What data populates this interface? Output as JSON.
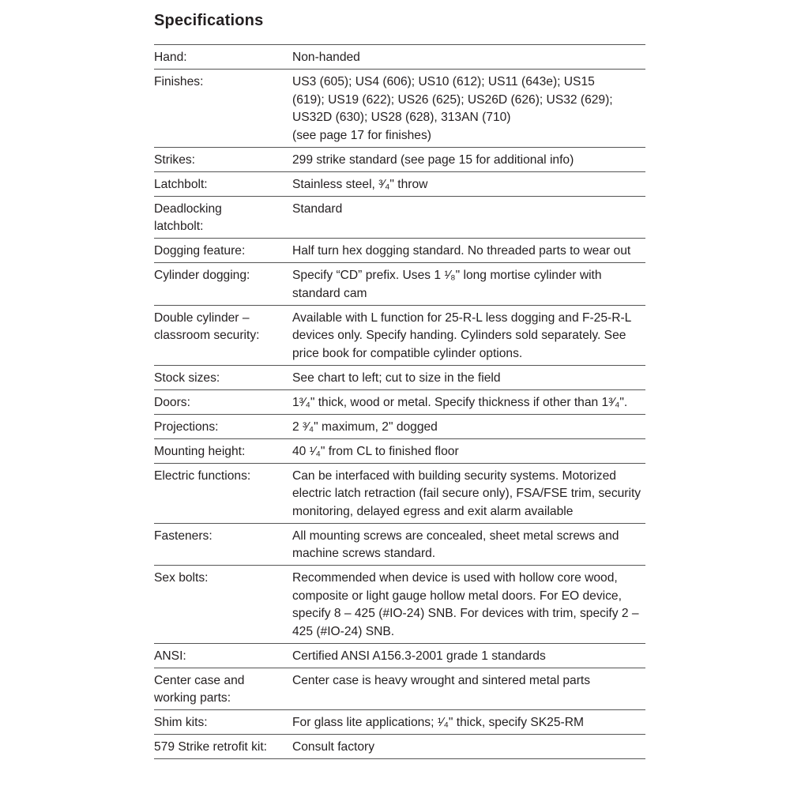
{
  "title": "Specifications",
  "rows": [
    {
      "label": "Hand:",
      "value": "Non-handed"
    },
    {
      "label": "Finishes:",
      "value": "US3 (605); US4 (606); US10 (612); US11 (643e); US15 (619); US19 (622); US26 (625); US26D (626); US32 (629); US32D (630); US28 (628), 313AN (710)\n(see page 17 for finishes)"
    },
    {
      "label": "Strikes:",
      "value": "299 strike standard (see page 15 for additional info)"
    },
    {
      "label": "Latchbolt:",
      "value": "Stainless steel, ³⁄₄\" throw"
    },
    {
      "label": "Deadlocking latchbolt:",
      "value": "Standard"
    },
    {
      "label": "Dogging feature:",
      "value": "Half turn hex dogging standard. No threaded parts to wear out"
    },
    {
      "label": "Cylinder dogging:",
      "value": "Specify “CD” prefix. Uses 1 ¹⁄₈\" long mortise cylinder with standard cam"
    },
    {
      "label": "Double cylinder – classroom security:",
      "value": "Available with L function for 25-R-L less dogging and F-25-R-L devices only. Specify handing. Cylinders sold separately. See price book for compatible cylinder options."
    },
    {
      "label": "Stock sizes:",
      "value": "See chart to left; cut to size in the field"
    },
    {
      "label": "Doors:",
      "value": "1³⁄₄\" thick, wood or metal. Specify thickness if other than 1³⁄₄\"."
    },
    {
      "label": "Projections:",
      "value": "2 ³⁄₄\" maximum, 2\" dogged"
    },
    {
      "label": "Mounting height:",
      "value": "40 ¹⁄₄\" from CL to finished floor"
    },
    {
      "label": "Electric functions:",
      "value": "Can be interfaced with building security systems. Motorized electric latch retraction (fail secure only), FSA/FSE trim, security monitoring, delayed egress and exit alarm available"
    },
    {
      "label": "Fasteners:",
      "value": "All mounting screws are concealed, sheet metal screws and machine screws standard."
    },
    {
      "label": "Sex bolts:",
      "value": "Recommended when device is used with hollow core wood, composite or light gauge hollow metal doors. For EO device, specify 8 – 425 (#IO-24) SNB.  For devices with trim, specify 2 – 425 (#IO-24) SNB."
    },
    {
      "label": "ANSI:",
      "value": "Certified ANSI A156.3-2001 grade 1 standards"
    },
    {
      "label": "Center case and working parts:",
      "value": "Center case is heavy wrought and sintered metal parts"
    },
    {
      "label": "Shim kits:",
      "value": "For glass lite applications; ¹⁄₄\" thick, specify SK25-RM"
    },
    {
      "label": "579 Strike retrofit kit:",
      "value": "Consult factory"
    }
  ]
}
